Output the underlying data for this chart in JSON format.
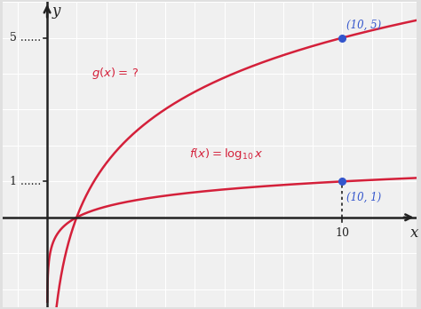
{
  "bg_color": "#e0e0e0",
  "plot_bg_color": "#f0f0f0",
  "grid_color": "#ffffff",
  "curve_color": "#d4203a",
  "point_color": "#3355cc",
  "axis_color": "#222222",
  "f_label": "f(x) = \\log_{10} x",
  "g_label": "g(x) = \\,?",
  "point1": [
    10,
    1
  ],
  "point2": [
    10,
    5
  ],
  "point1_label": "(10, 1)",
  "point2_label": "(10, 5)",
  "x_label": "x",
  "y_label": "y",
  "xmin": -1.5,
  "xmax": 12.5,
  "ymin": -2.5,
  "ymax": 6.0
}
